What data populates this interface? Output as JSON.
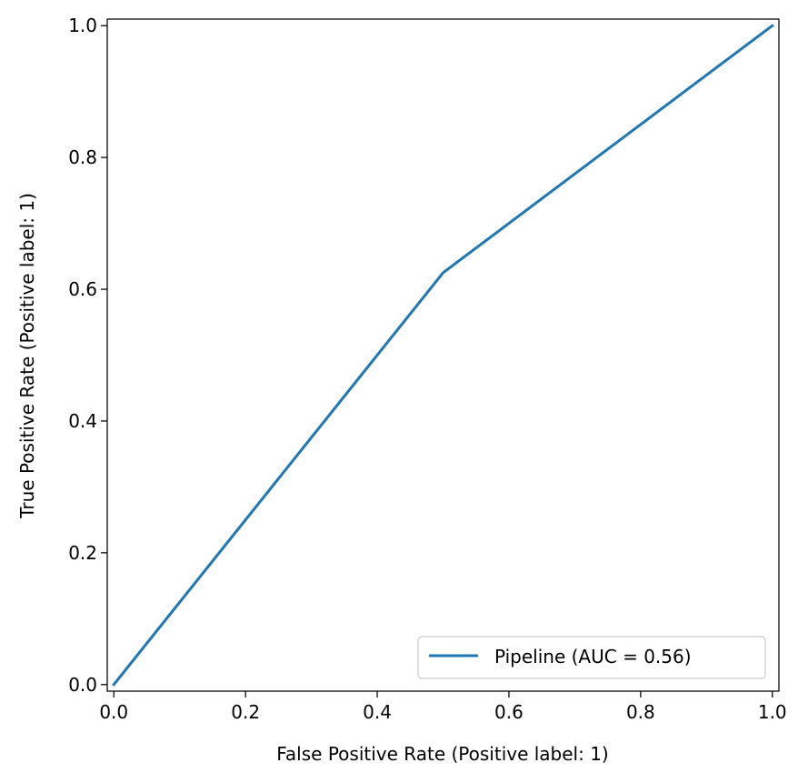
{
  "chart_data": {
    "type": "line",
    "title": "",
    "xlabel": "False Positive Rate (Positive label: 1)",
    "ylabel": "True Positive Rate (Positive label: 1)",
    "xlim": [
      -0.01,
      1.01
    ],
    "ylim": [
      -0.01,
      1.01
    ],
    "xticks": [
      "0.0",
      "0.2",
      "0.4",
      "0.6",
      "0.8",
      "1.0"
    ],
    "yticks": [
      "0.0",
      "0.2",
      "0.4",
      "0.6",
      "0.8",
      "1.0"
    ],
    "grid": false,
    "legend_position": "bottom-right",
    "series": [
      {
        "name": "Pipeline (AUC = 0.56)",
        "color": "#1f77b4",
        "x": [
          0.0,
          0.5,
          1.0
        ],
        "y": [
          0.0,
          0.625,
          1.0
        ]
      }
    ]
  }
}
